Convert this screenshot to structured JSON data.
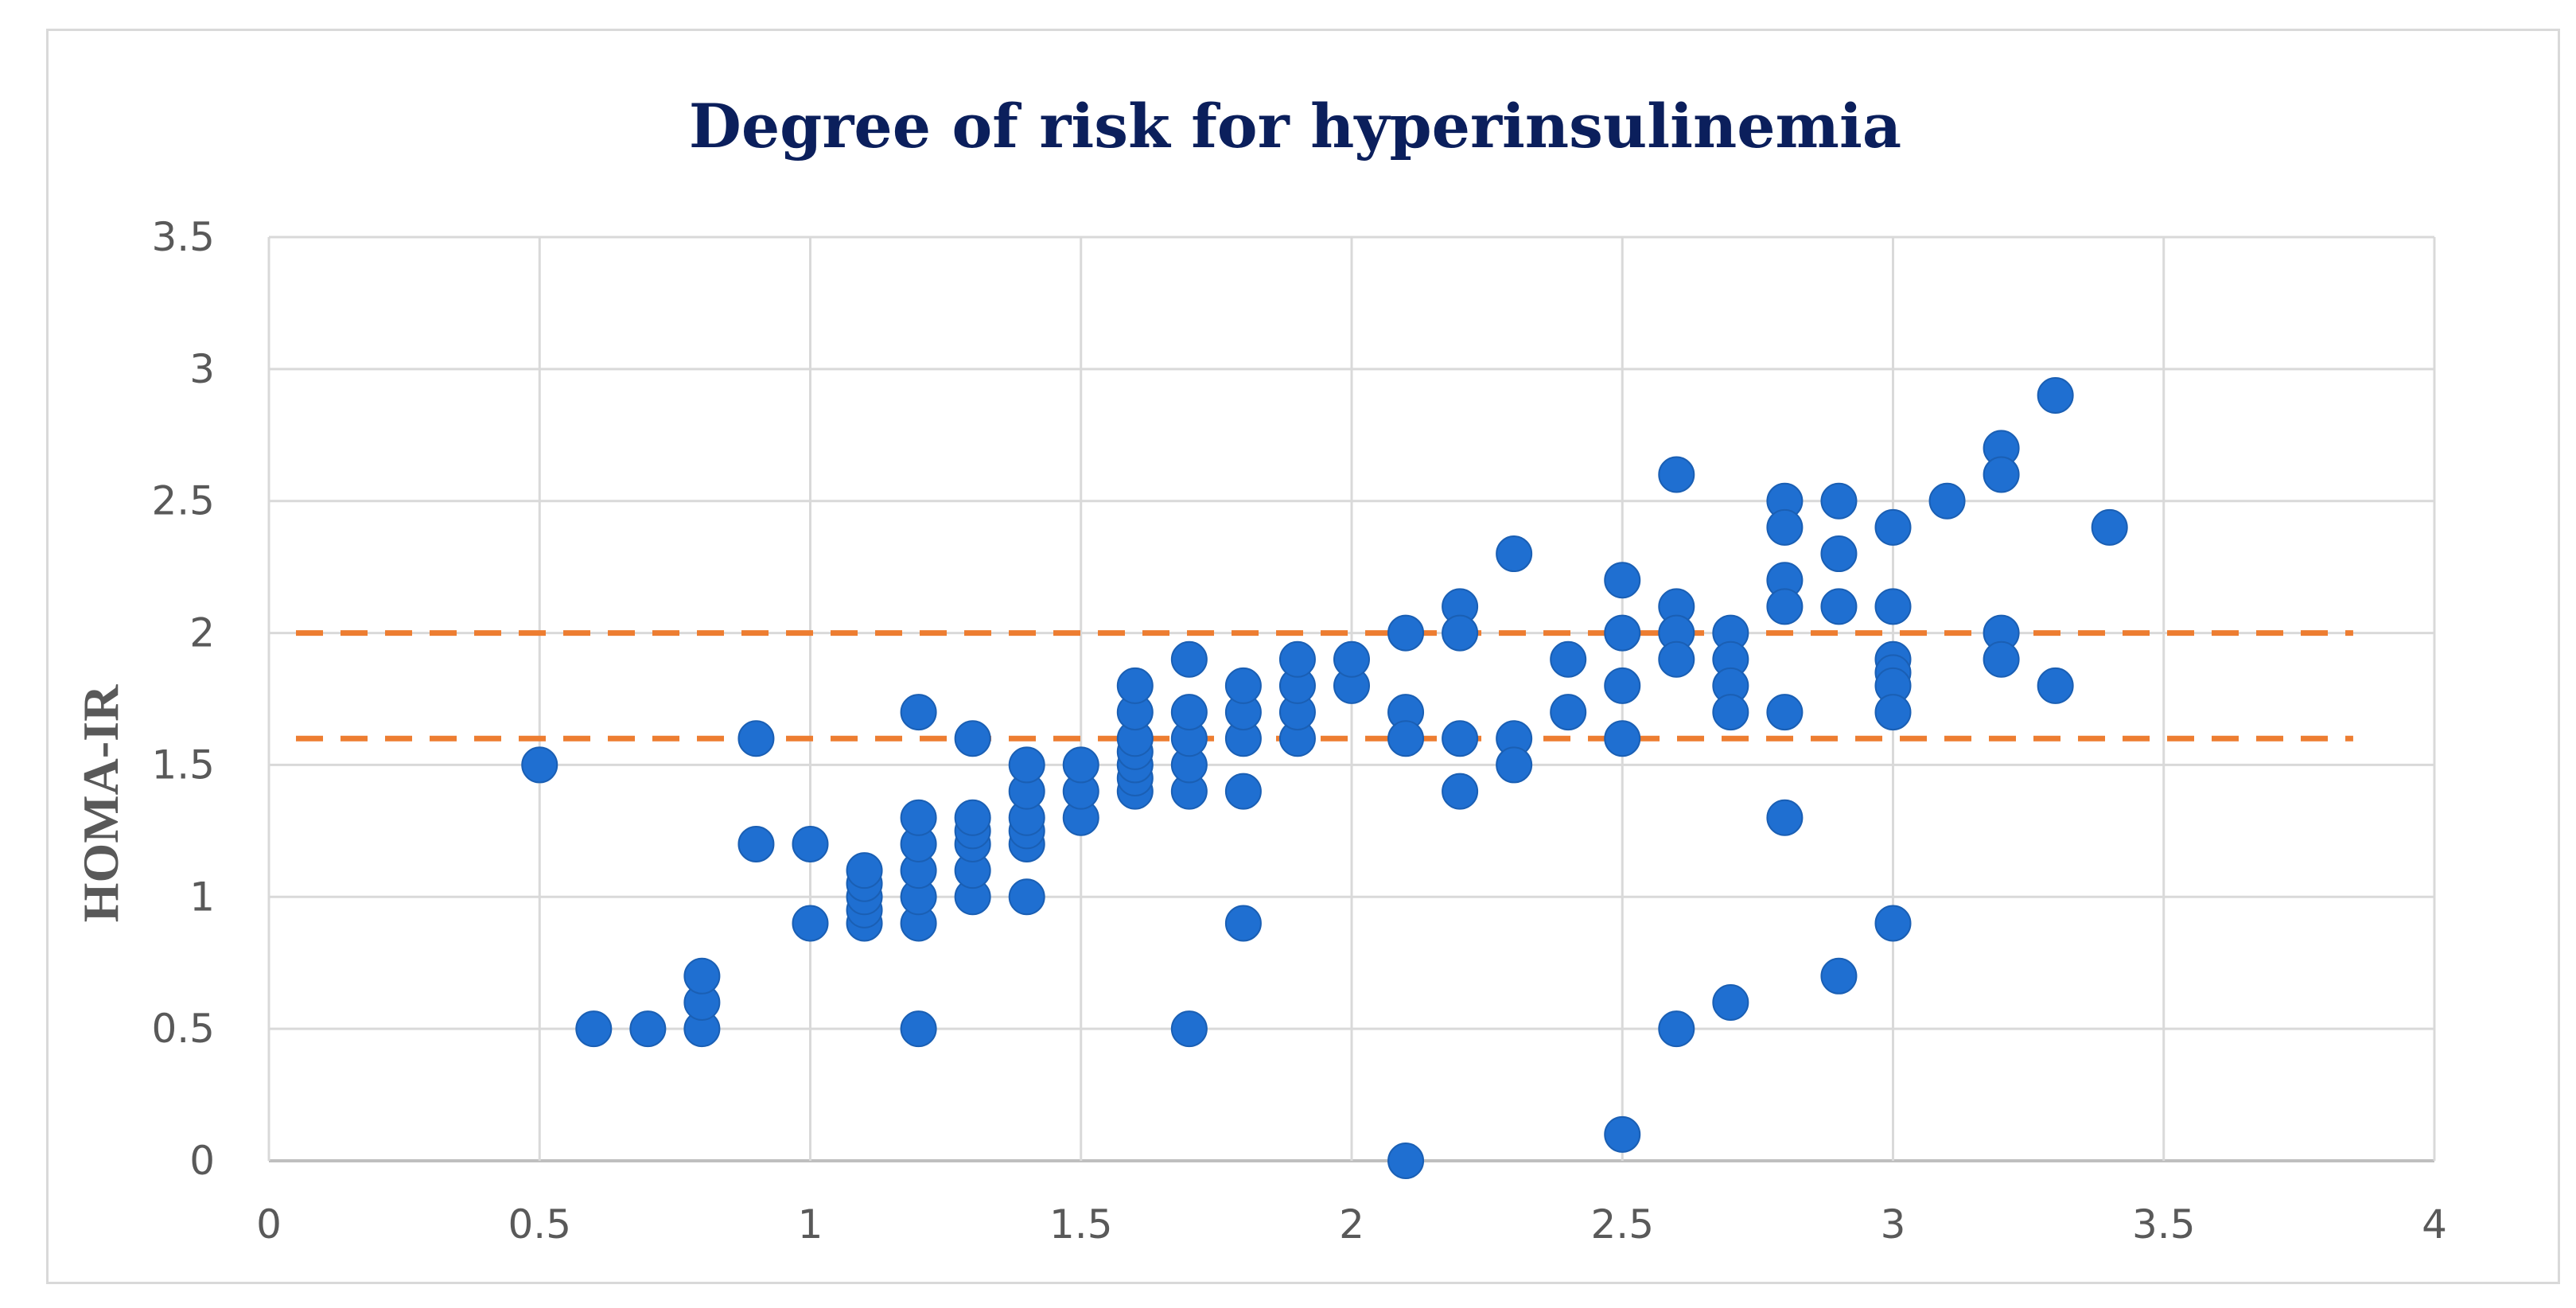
{
  "chart_data": {
    "type": "scatter",
    "title": "Degree of risk for hyperinsulinemia",
    "xlabel": "",
    "ylabel": "HOMA-IR",
    "xlim": [
      0,
      4
    ],
    "ylim": [
      0,
      3.5
    ],
    "x_ticks": [
      0,
      0.5,
      1,
      1.5,
      2,
      2.5,
      3,
      3.5,
      4
    ],
    "x_tick_labels": [
      "0",
      "0.5",
      "1",
      "1.5",
      "2",
      "2.5",
      "3",
      "3.5",
      "4"
    ],
    "y_ticks": [
      0,
      0.5,
      1,
      1.5,
      2,
      2.5,
      3,
      3.5
    ],
    "y_tick_labels": [
      "0",
      "0.5",
      "1",
      "1.5",
      "2",
      "2.5",
      "3",
      "3.5"
    ],
    "grid": true,
    "point_color": "#1f6fd1",
    "reference_color": "#ed7d31",
    "reference_lines": [
      {
        "y": 2.0,
        "x_start": 0.05,
        "x_end": 3.85,
        "style": "dashed"
      },
      {
        "y": 1.6,
        "x_start": 0.05,
        "x_end": 3.85,
        "style": "dashed"
      }
    ],
    "series": [
      {
        "name": "HOMA-IR",
        "points": [
          [
            0.5,
            1.5
          ],
          [
            0.6,
            0.5
          ],
          [
            0.7,
            0.5
          ],
          [
            0.8,
            0.5
          ],
          [
            0.8,
            0.6
          ],
          [
            0.8,
            0.7
          ],
          [
            0.9,
            1.6
          ],
          [
            0.9,
            1.2
          ],
          [
            1.0,
            1.2
          ],
          [
            1.0,
            0.9
          ],
          [
            1.1,
            0.9
          ],
          [
            1.1,
            0.95
          ],
          [
            1.1,
            1.0
          ],
          [
            1.1,
            1.05
          ],
          [
            1.1,
            1.1
          ],
          [
            1.2,
            0.9
          ],
          [
            1.2,
            1.0
          ],
          [
            1.2,
            1.1
          ],
          [
            1.2,
            1.2
          ],
          [
            1.2,
            1.3
          ],
          [
            1.2,
            1.7
          ],
          [
            1.2,
            0.5
          ],
          [
            1.3,
            1.0
          ],
          [
            1.3,
            1.1
          ],
          [
            1.3,
            1.2
          ],
          [
            1.3,
            1.25
          ],
          [
            1.3,
            1.3
          ],
          [
            1.3,
            1.6
          ],
          [
            1.4,
            1.0
          ],
          [
            1.4,
            1.2
          ],
          [
            1.4,
            1.25
          ],
          [
            1.4,
            1.3
          ],
          [
            1.4,
            1.4
          ],
          [
            1.4,
            1.5
          ],
          [
            1.5,
            1.3
          ],
          [
            1.5,
            1.4
          ],
          [
            1.5,
            1.5
          ],
          [
            1.6,
            1.4
          ],
          [
            1.6,
            1.45
          ],
          [
            1.6,
            1.5
          ],
          [
            1.6,
            1.55
          ],
          [
            1.6,
            1.6
          ],
          [
            1.6,
            1.7
          ],
          [
            1.6,
            1.8
          ],
          [
            1.7,
            1.4
          ],
          [
            1.7,
            1.5
          ],
          [
            1.7,
            1.6
          ],
          [
            1.7,
            1.7
          ],
          [
            1.7,
            1.9
          ],
          [
            1.7,
            0.5
          ],
          [
            1.8,
            1.4
          ],
          [
            1.8,
            1.6
          ],
          [
            1.8,
            1.7
          ],
          [
            1.8,
            1.8
          ],
          [
            1.8,
            0.9
          ],
          [
            1.9,
            1.6
          ],
          [
            1.9,
            1.7
          ],
          [
            1.9,
            1.8
          ],
          [
            1.9,
            1.9
          ],
          [
            2.0,
            1.8
          ],
          [
            2.0,
            1.9
          ],
          [
            2.1,
            2.0
          ],
          [
            2.1,
            1.7
          ],
          [
            2.1,
            1.6
          ],
          [
            2.1,
            0.0
          ],
          [
            2.2,
            2.1
          ],
          [
            2.2,
            2.0
          ],
          [
            2.2,
            1.6
          ],
          [
            2.2,
            1.4
          ],
          [
            2.3,
            2.3
          ],
          [
            2.3,
            1.6
          ],
          [
            2.3,
            1.5
          ],
          [
            2.4,
            1.9
          ],
          [
            2.4,
            1.7
          ],
          [
            2.5,
            2.2
          ],
          [
            2.5,
            2.0
          ],
          [
            2.5,
            1.8
          ],
          [
            2.5,
            1.6
          ],
          [
            2.5,
            0.1
          ],
          [
            2.6,
            2.6
          ],
          [
            2.6,
            2.1
          ],
          [
            2.6,
            2.0
          ],
          [
            2.6,
            1.9
          ],
          [
            2.6,
            0.5
          ],
          [
            2.7,
            2.0
          ],
          [
            2.7,
            1.9
          ],
          [
            2.7,
            1.8
          ],
          [
            2.7,
            1.7
          ],
          [
            2.7,
            0.6
          ],
          [
            2.8,
            2.5
          ],
          [
            2.8,
            2.4
          ],
          [
            2.8,
            2.2
          ],
          [
            2.8,
            2.1
          ],
          [
            2.8,
            1.7
          ],
          [
            2.8,
            1.3
          ],
          [
            2.9,
            2.5
          ],
          [
            2.9,
            2.3
          ],
          [
            2.9,
            2.1
          ],
          [
            2.9,
            0.7
          ],
          [
            3.0,
            2.4
          ],
          [
            3.0,
            2.1
          ],
          [
            3.0,
            1.9
          ],
          [
            3.0,
            1.85
          ],
          [
            3.0,
            1.8
          ],
          [
            3.0,
            1.7
          ],
          [
            3.0,
            0.9
          ],
          [
            3.1,
            2.5
          ],
          [
            3.2,
            2.7
          ],
          [
            3.2,
            2.6
          ],
          [
            3.2,
            2.0
          ],
          [
            3.2,
            1.9
          ],
          [
            3.3,
            2.9
          ],
          [
            3.3,
            1.8
          ],
          [
            3.4,
            2.4
          ]
        ]
      }
    ]
  }
}
